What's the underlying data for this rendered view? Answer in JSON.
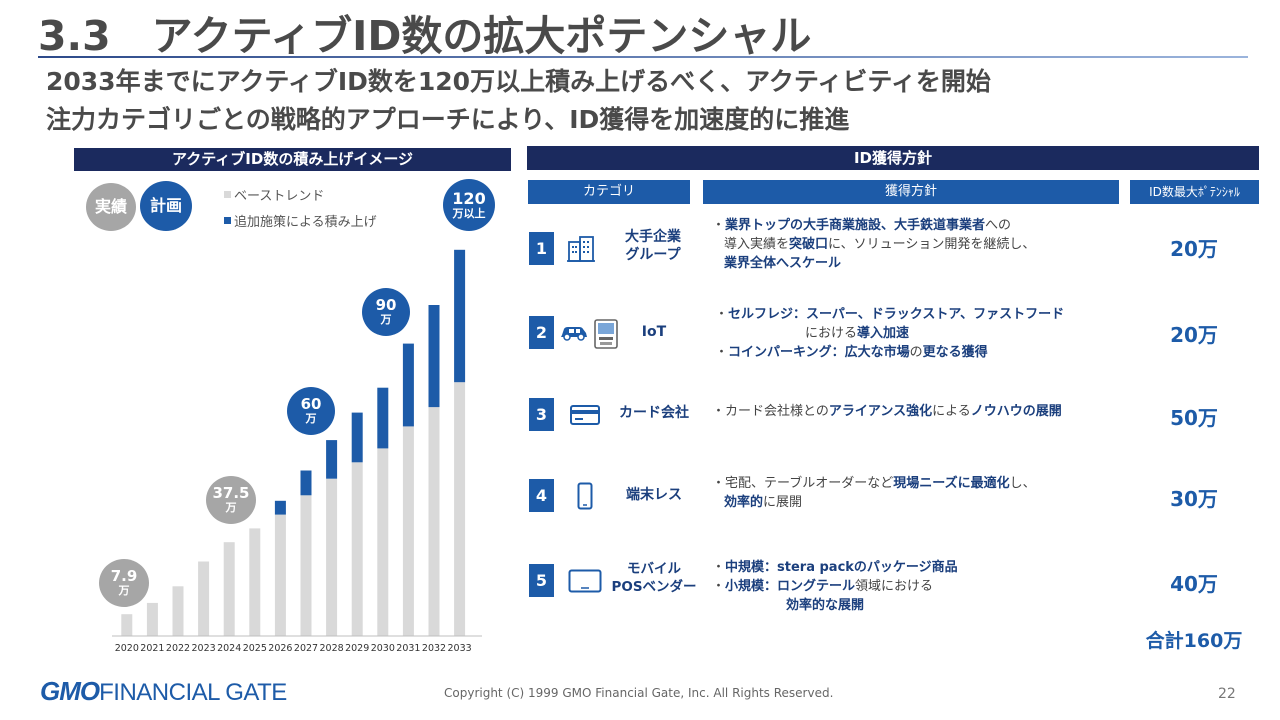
{
  "header": {
    "title": "3.3　アクティブID数の拡大ポテンシャル",
    "subtitle_line1": "2033年までにアクティブID数を120万以上積み上げるべく、アクティビティを開始",
    "subtitle_line2": "注力カテゴリごとの戦略的アプローチにより、ID獲得を加速度的に推進"
  },
  "chart_panel": {
    "heading": "アクティブID数の積み上げイメージ",
    "badge_actual": "実績",
    "badge_plan": "計画",
    "legend_base": "ベーストレンド",
    "legend_add": "追加施策による積み上げ",
    "callouts": [
      {
        "value": "7.9",
        "unit": "万"
      },
      {
        "value": "37.5",
        "unit": "万"
      },
      {
        "value": "60",
        "unit": "万"
      },
      {
        "value": "90",
        "unit": "万"
      },
      {
        "value": "120",
        "unit": "万以上"
      }
    ],
    "colors": {
      "base": "#d9d9d9",
      "additional": "#1d5ba8",
      "actual_badge": "#a6a6a6",
      "plan_badge": "#1d5ba8"
    }
  },
  "chart_data": {
    "type": "bar",
    "stacked": true,
    "categories": [
      "2020",
      "2021",
      "2022",
      "2023",
      "2024",
      "2025",
      "2026",
      "2027",
      "2028",
      "2029",
      "2030",
      "2031",
      "2032",
      "2033"
    ],
    "series": [
      {
        "name": "ベーストレンド",
        "values": [
          7.9,
          12,
          18,
          27,
          34,
          39,
          44,
          51,
          57,
          63,
          68,
          76,
          83,
          92
        ]
      },
      {
        "name": "追加施策による積み上げ",
        "values": [
          0,
          0,
          0,
          0,
          0,
          0,
          5,
          9,
          14,
          18,
          22,
          30,
          37,
          48
        ]
      }
    ],
    "annotations": [
      "7.9万",
      "37.5万",
      "60万",
      "90万",
      "120万以上"
    ],
    "ylim": [
      0,
      145
    ],
    "grid": false
  },
  "table_panel": {
    "heading": "ID獲得方針",
    "columns": [
      "カテゴリ",
      "獲得方針",
      "ID数最大ﾎﾟﾃﾝｼｬﾙ"
    ],
    "rows": [
      {
        "num": "1",
        "icon": "building-icon",
        "cat1": "大手企業",
        "cat2": "グループ",
        "l1a": "業界トップの大手商業施設、大手鉄道事業者",
        "l1b": "への",
        "l2a": "導入実績を",
        "l2b": "突破口",
        "l2c": "に、ソリューション開発を継続し、",
        "l3": "業界全体へスケール",
        "potential": "20万"
      },
      {
        "num": "2",
        "icon": "car-icon",
        "icon2": "kiosk-icon",
        "cat1": "IoT",
        "l1": "セルフレジ：スーパー、ドラックストア、ファストフード",
        "l2a": "における",
        "l2b": "導入加速",
        "l3a": "コインパーキング：広大な市場",
        "l3b": "の",
        "l3c": "更なる獲得",
        "potential": "20万"
      },
      {
        "num": "3",
        "icon": "credit-card-icon",
        "cat1": "カード会社",
        "l1a": "カード会社様との",
        "l1b": "アライアンス強化",
        "l1c": "による",
        "l1d": "ノウハウの展開",
        "potential": "50万"
      },
      {
        "num": "4",
        "icon": "smartphone-icon",
        "cat1": "端末レス",
        "l1a": "宅配、テーブルオーダーなど",
        "l1b": "現場ニーズに最適化",
        "l1c": "し、",
        "l2a": "効率的",
        "l2b": "に展開",
        "potential": "30万"
      },
      {
        "num": "5",
        "icon": "tablet-icon",
        "cat1": "モバイル",
        "cat2": "POSベンダー",
        "l1": "中規模：stera packのパッケージ商品",
        "l2a": "小規模：ロングテール",
        "l2b": "領域における",
        "l3": "効率的な展開",
        "potential": "40万"
      }
    ],
    "total": "合計160万"
  },
  "footer": {
    "logo_gmo": "GMO",
    "logo_rest": "FINANCIAL GATE",
    "copyright": "Copyright (C) 1999 GMO Financial Gate, Inc. All Rights Reserved.",
    "page_number": "22"
  }
}
